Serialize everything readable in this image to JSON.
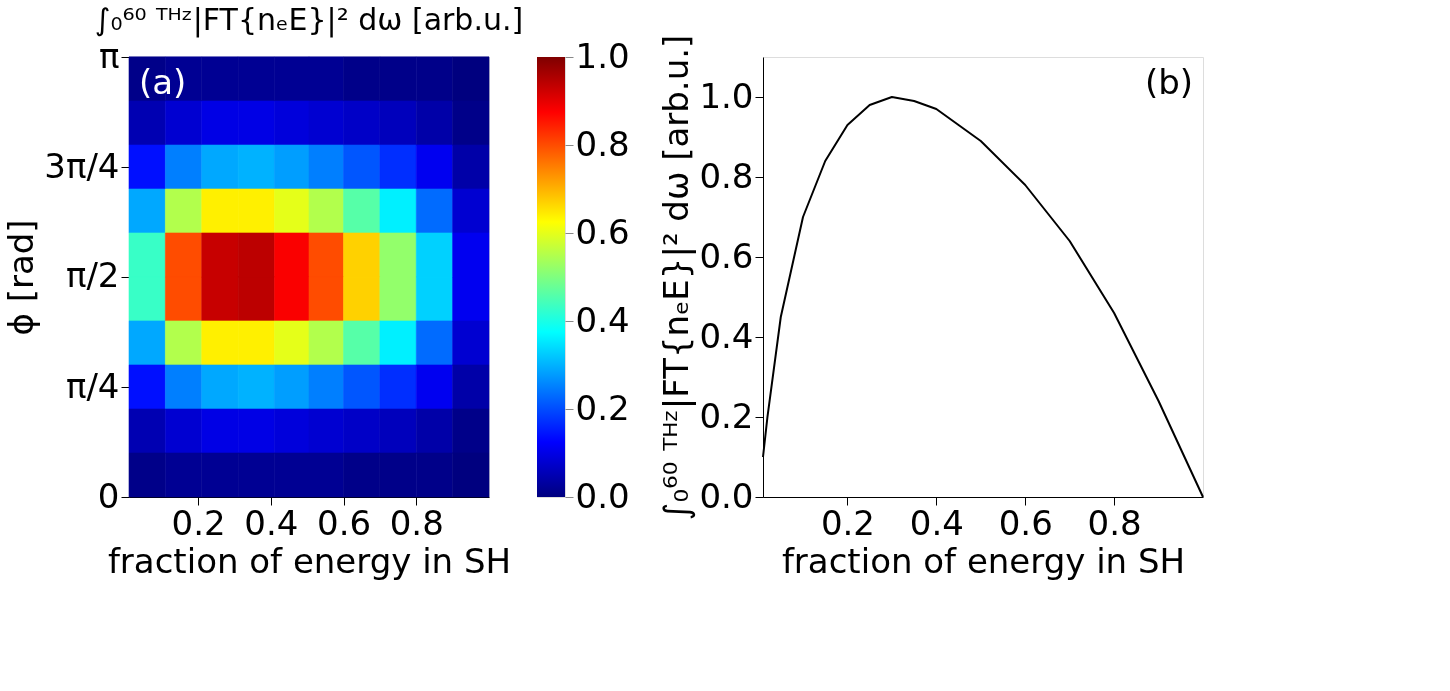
{
  "chart_data": [
    {
      "type": "heatmap",
      "title": "∫₀⁶⁰ ᵀᴴᶻ|FT{nₑE}|² dω [arb.u.]",
      "xlabel": "fraction of energy in SH",
      "ylabel": "ϕ [rad]",
      "x": [
        0.06,
        0.16,
        0.26,
        0.36,
        0.46,
        0.55,
        0.65,
        0.75,
        0.85,
        0.95
      ],
      "y": [
        2.985,
        2.67,
        2.356,
        2.042,
        1.728,
        1.414,
        1.1,
        0.785,
        0.471,
        0.157
      ],
      "cells": [
        [
          0.01,
          0.02,
          0.02,
          0.02,
          0.02,
          0.02,
          0.01,
          0.01,
          0.01,
          0.0
        ],
        [
          0.05,
          0.08,
          0.1,
          0.1,
          0.09,
          0.08,
          0.07,
          0.06,
          0.04,
          0.01
        ],
        [
          0.14,
          0.25,
          0.29,
          0.3,
          0.28,
          0.25,
          0.21,
          0.17,
          0.11,
          0.04
        ],
        [
          0.29,
          0.55,
          0.64,
          0.64,
          0.6,
          0.55,
          0.46,
          0.36,
          0.23,
          0.08
        ],
        [
          0.43,
          0.8,
          0.93,
          0.94,
          0.88,
          0.8,
          0.67,
          0.52,
          0.33,
          0.11
        ],
        [
          0.43,
          0.8,
          0.93,
          0.94,
          0.88,
          0.8,
          0.67,
          0.52,
          0.33,
          0.11
        ],
        [
          0.29,
          0.55,
          0.64,
          0.64,
          0.6,
          0.55,
          0.46,
          0.36,
          0.23,
          0.08
        ],
        [
          0.14,
          0.25,
          0.29,
          0.3,
          0.28,
          0.25,
          0.21,
          0.17,
          0.11,
          0.04
        ],
        [
          0.05,
          0.08,
          0.1,
          0.1,
          0.09,
          0.08,
          0.07,
          0.06,
          0.04,
          0.01
        ],
        [
          0.01,
          0.02,
          0.02,
          0.02,
          0.02,
          0.02,
          0.01,
          0.01,
          0.01,
          0.0
        ]
      ],
      "xlim": [
        0.01,
        1.0
      ],
      "xticks": [
        0.2,
        0.4,
        0.6,
        0.8
      ],
      "ylim": [
        0,
        3.1416
      ],
      "yticks": [
        {
          "value": 0,
          "label": "0"
        },
        {
          "value": 0.785,
          "label": "π/4"
        },
        {
          "value": 1.571,
          "label": "π/2"
        },
        {
          "value": 2.356,
          "label": "3π/4"
        },
        {
          "value": 3.1416,
          "label": "π"
        }
      ],
      "clim": [
        0,
        1
      ],
      "cticks": [
        {
          "value": 0,
          "label": "0.0"
        },
        0.2,
        0.4,
        0.6,
        0.8,
        {
          "value": 1,
          "label": "1.0"
        }
      ],
      "annotations": [
        "(a)"
      ],
      "grid": false
    },
    {
      "type": "line",
      "xlabel": "fraction of energy in SH",
      "ylabel": "∫₀⁶⁰ ᵀᴴᶻ|FT{nₑE}|² dω [arb.u.]",
      "x": [
        0.01,
        0.02,
        0.05,
        0.1,
        0.15,
        0.2,
        0.25,
        0.3,
        0.35,
        0.4,
        0.5,
        0.6,
        0.7,
        0.8,
        0.9,
        0.95,
        1.0
      ],
      "series": [
        {
          "color": "#000000",
          "values": [
            0.1,
            0.2,
            0.45,
            0.7,
            0.84,
            0.93,
            0.98,
            1.0,
            0.99,
            0.97,
            0.89,
            0.78,
            0.64,
            0.46,
            0.24,
            0.12,
            0.0
          ]
        }
      ],
      "xlim": [
        0.01,
        1.0
      ],
      "xticks": [
        0.2,
        0.4,
        0.6,
        0.8
      ],
      "ylim": [
        0,
        1.1
      ],
      "yticks": [
        {
          "value": 0,
          "label": "0.0"
        },
        0.2,
        0.4,
        0.6,
        0.8,
        {
          "value": 1.0,
          "label": "1.0"
        }
      ],
      "annotations": [
        "(b)"
      ],
      "grid": false,
      "legend": false,
      "marker": "none",
      "line_style": "solid"
    }
  ]
}
